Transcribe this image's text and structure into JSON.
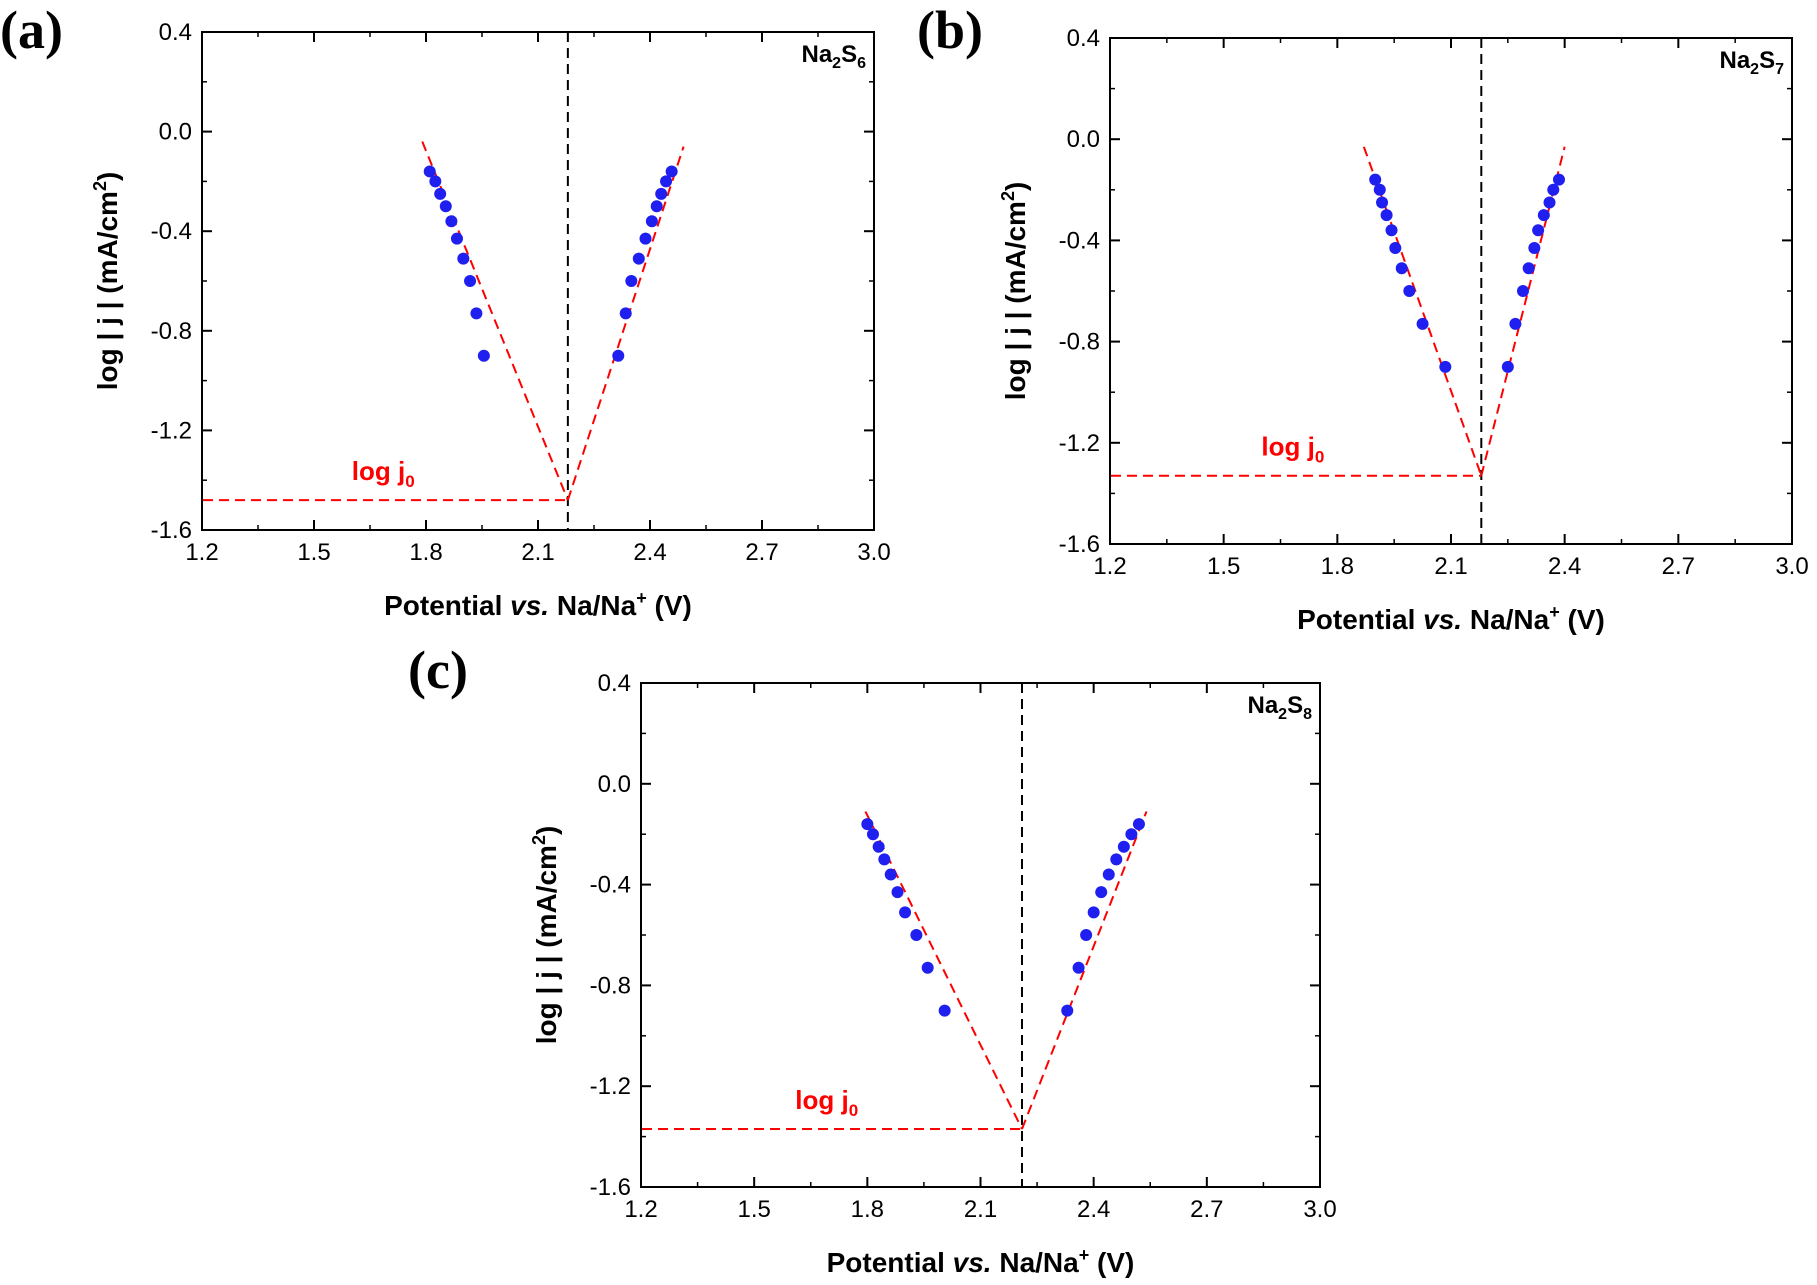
{
  "figure": {
    "panel_labels": [
      "(a)",
      "(b)",
      "(c)"
    ]
  },
  "chart_data": [
    {
      "type": "scatter",
      "panel": "(a)",
      "sample_label": {
        "base1": "Na",
        "sub1": "2",
        "base2": "S",
        "sub2": "6"
      },
      "xlabel": {
        "pre": "Potential ",
        "italic": "vs.",
        "post": " Na/Na",
        "sup": "+",
        "tail": " (V)"
      },
      "ylabel": {
        "pre": "log | j | (mA/cm",
        "sup": "2",
        "post": ")"
      },
      "annotation": {
        "base": "log j",
        "sub": "0"
      },
      "xlim": [
        1.2,
        3.0
      ],
      "ylim": [
        -1.6,
        0.4
      ],
      "xticks": [
        "1.2",
        "1.5",
        "1.8",
        "2.1",
        "2.4",
        "2.7",
        "3.0"
      ],
      "yticks": [
        "0.4",
        "0.0",
        "-0.4",
        "-0.8",
        "-1.2",
        "-1.6"
      ],
      "marker_color": "#1f1ff0",
      "fit_color": "#ff0000",
      "guide_color": "#000000",
      "points": [
        [
          1.81,
          -0.16
        ],
        [
          1.825,
          -0.2
        ],
        [
          1.838,
          -0.25
        ],
        [
          1.853,
          -0.3
        ],
        [
          1.868,
          -0.36
        ],
        [
          1.883,
          -0.43
        ],
        [
          1.9,
          -0.51
        ],
        [
          1.918,
          -0.6
        ],
        [
          1.935,
          -0.73
        ],
        [
          1.955,
          -0.9
        ],
        [
          2.315,
          -0.9
        ],
        [
          2.335,
          -0.73
        ],
        [
          2.35,
          -0.6
        ],
        [
          2.37,
          -0.51
        ],
        [
          2.388,
          -0.43
        ],
        [
          2.405,
          -0.36
        ],
        [
          2.418,
          -0.3
        ],
        [
          2.43,
          -0.25
        ],
        [
          2.443,
          -0.2
        ],
        [
          2.458,
          -0.16
        ]
      ],
      "fit_lines": [
        [
          [
            1.79,
            -0.04
          ],
          [
            2.18,
            -1.48
          ]
        ],
        [
          [
            2.18,
            -1.48
          ],
          [
            2.49,
            -0.06
          ]
        ]
      ],
      "j0_line": [
        [
          1.2,
          -1.48
        ],
        [
          2.18,
          -1.48
        ]
      ],
      "equilibrium_potential": 2.18
    },
    {
      "type": "scatter",
      "panel": "(b)",
      "sample_label": {
        "base1": "Na",
        "sub1": "2",
        "base2": "S",
        "sub2": "7"
      },
      "xlabel": {
        "pre": "Potential ",
        "italic": "vs.",
        "post": " Na/Na",
        "sup": "+",
        "tail": " (V)"
      },
      "ylabel": {
        "pre": "log | j | (mA/cm",
        "sup": "2",
        "post": ")"
      },
      "annotation": {
        "base": "log j",
        "sub": "0"
      },
      "xlim": [
        1.2,
        3.0
      ],
      "ylim": [
        -1.6,
        0.4
      ],
      "xticks": [
        "1.2",
        "1.5",
        "1.8",
        "2.1",
        "2.4",
        "2.7",
        "3.0"
      ],
      "yticks": [
        "0.4",
        "0.0",
        "-0.4",
        "-0.8",
        "-1.2",
        "-1.6"
      ],
      "marker_color": "#1f1ff0",
      "fit_color": "#ff0000",
      "guide_color": "#000000",
      "points": [
        [
          1.9,
          -0.16
        ],
        [
          1.912,
          -0.2
        ],
        [
          1.918,
          -0.25
        ],
        [
          1.93,
          -0.3
        ],
        [
          1.943,
          -0.36
        ],
        [
          1.953,
          -0.43
        ],
        [
          1.97,
          -0.51
        ],
        [
          1.99,
          -0.6
        ],
        [
          2.025,
          -0.73
        ],
        [
          2.085,
          -0.9
        ],
        [
          2.25,
          -0.9
        ],
        [
          2.27,
          -0.73
        ],
        [
          2.29,
          -0.6
        ],
        [
          2.305,
          -0.51
        ],
        [
          2.32,
          -0.43
        ],
        [
          2.33,
          -0.36
        ],
        [
          2.345,
          -0.3
        ],
        [
          2.36,
          -0.25
        ],
        [
          2.37,
          -0.2
        ],
        [
          2.385,
          -0.16
        ]
      ],
      "fit_lines": [
        [
          [
            1.87,
            -0.03
          ],
          [
            2.18,
            -1.33
          ]
        ],
        [
          [
            2.18,
            -1.33
          ],
          [
            2.4,
            -0.03
          ]
        ]
      ],
      "j0_line": [
        [
          1.2,
          -1.33
        ],
        [
          2.18,
          -1.33
        ]
      ],
      "equilibrium_potential": 2.18
    },
    {
      "type": "scatter",
      "panel": "(c)",
      "sample_label": {
        "base1": "Na",
        "sub1": "2",
        "base2": "S",
        "sub2": "8"
      },
      "xlabel": {
        "pre": "Potential ",
        "italic": "vs.",
        "post": " Na/Na",
        "sup": "+",
        "tail": " (V)"
      },
      "ylabel": {
        "pre": "log | j | (mA/cm",
        "sup": "2",
        "post": ")"
      },
      "annotation": {
        "base": "log j",
        "sub": "0"
      },
      "xlim": [
        1.2,
        3.0
      ],
      "ylim": [
        -1.6,
        0.4
      ],
      "xticks": [
        "1.2",
        "1.5",
        "1.8",
        "2.1",
        "2.4",
        "2.7",
        "3.0"
      ],
      "yticks": [
        "0.4",
        "0.0",
        "-0.4",
        "-0.8",
        "-1.2",
        "-1.6"
      ],
      "marker_color": "#1f1ff0",
      "fit_color": "#ff0000",
      "guide_color": "#000000",
      "points": [
        [
          1.8,
          -0.16
        ],
        [
          1.815,
          -0.2
        ],
        [
          1.83,
          -0.25
        ],
        [
          1.845,
          -0.3
        ],
        [
          1.862,
          -0.36
        ],
        [
          1.88,
          -0.43
        ],
        [
          1.9,
          -0.51
        ],
        [
          1.93,
          -0.6
        ],
        [
          1.96,
          -0.73
        ],
        [
          2.005,
          -0.9
        ],
        [
          2.33,
          -0.9
        ],
        [
          2.36,
          -0.73
        ],
        [
          2.38,
          -0.6
        ],
        [
          2.4,
          -0.51
        ],
        [
          2.42,
          -0.43
        ],
        [
          2.44,
          -0.36
        ],
        [
          2.46,
          -0.3
        ],
        [
          2.48,
          -0.25
        ],
        [
          2.5,
          -0.2
        ],
        [
          2.52,
          -0.16
        ]
      ],
      "fit_lines": [
        [
          [
            1.795,
            -0.11
          ],
          [
            2.21,
            -1.37
          ]
        ],
        [
          [
            2.21,
            -1.37
          ],
          [
            2.54,
            -0.11
          ]
        ]
      ],
      "j0_line": [
        [
          1.2,
          -1.37
        ],
        [
          2.21,
          -1.37
        ]
      ],
      "equilibrium_potential": 2.21
    }
  ]
}
